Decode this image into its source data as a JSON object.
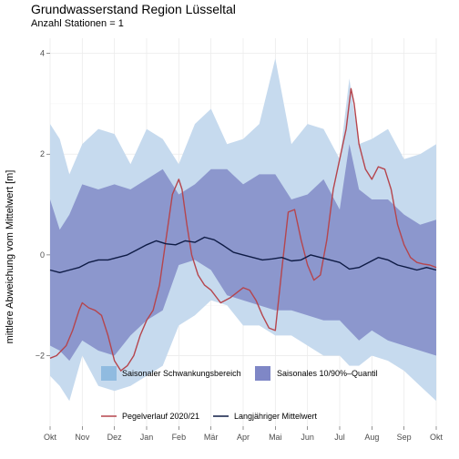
{
  "title": "Grundwasserstand Region Lüsseltal",
  "subtitle": "Anzahl Stationen = 1",
  "chart_data": {
    "type": "area",
    "title": "Grundwasserstand Region Lüsseltal",
    "subtitle": "Anzahl Stationen = 1",
    "xlabel": "",
    "ylabel": "mittlere Abweichung vom Mittelwert [m]",
    "xlim": [
      0,
      12
    ],
    "ylim": [
      -3.4,
      4.3
    ],
    "x_ticks": [
      {
        "x": 0,
        "label": "Okt"
      },
      {
        "x": 1,
        "label": "Nov"
      },
      {
        "x": 2,
        "label": "Dez"
      },
      {
        "x": 3,
        "label": "Jan"
      },
      {
        "x": 4,
        "label": "Feb"
      },
      {
        "x": 5,
        "label": "Mär"
      },
      {
        "x": 6,
        "label": "Apr"
      },
      {
        "x": 7,
        "label": "Mai"
      },
      {
        "x": 8,
        "label": "Jun"
      },
      {
        "x": 9,
        "label": "Jul"
      },
      {
        "x": 10,
        "label": "Aug"
      },
      {
        "x": 11,
        "label": "Sep"
      },
      {
        "x": 12,
        "label": "Okt"
      }
    ],
    "y_ticks": [
      -2,
      0,
      2,
      4
    ],
    "y_tick_labels": [
      "−2",
      "0",
      "2",
      "4"
    ],
    "grid": true,
    "legend_position": "bottom",
    "colors": {
      "range_band": "#c6daee",
      "quantile_band": "#8c97cd",
      "pegel": "#b5454d",
      "mittel": "#0e1b45",
      "legend_range": "#90bbe0",
      "legend_quantile": "#7f87c6"
    },
    "series": [
      {
        "name": "Saisonaler Schwankungsbereich",
        "kind": "band",
        "x": [
          0,
          0.3,
          0.6,
          1,
          1.5,
          2,
          2.5,
          3,
          3.5,
          4,
          4.5,
          5,
          5.5,
          6,
          6.5,
          7,
          7.5,
          8,
          8.5,
          9,
          9.3,
          9.6,
          10,
          10.5,
          11,
          11.5,
          12
        ],
        "upper": [
          2.6,
          2.3,
          1.6,
          2.2,
          2.5,
          2.4,
          1.8,
          2.5,
          2.3,
          1.8,
          2.6,
          2.9,
          2.2,
          2.3,
          2.6,
          3.9,
          2.2,
          2.6,
          2.5,
          1.9,
          3.5,
          2.2,
          2.3,
          2.5,
          1.9,
          2.0,
          2.2
        ],
        "lower": [
          -2.4,
          -2.6,
          -2.9,
          -2.0,
          -2.6,
          -2.7,
          -2.6,
          -2.4,
          -2.2,
          -1.4,
          -1.2,
          -0.9,
          -1.0,
          -1.4,
          -1.4,
          -1.6,
          -1.6,
          -1.8,
          -2.0,
          -2.0,
          -2.2,
          -2.2,
          -2.0,
          -2.1,
          -2.3,
          -2.6,
          -2.9
        ]
      },
      {
        "name": "Saisonales 10/90%–Quantil",
        "kind": "band",
        "x": [
          0,
          0.3,
          0.6,
          1,
          1.5,
          2,
          2.5,
          3,
          3.5,
          4,
          4.5,
          5,
          5.5,
          6,
          6.5,
          7,
          7.5,
          8,
          8.5,
          9,
          9.3,
          9.6,
          10,
          10.5,
          11,
          11.5,
          12
        ],
        "upper": [
          1.1,
          0.5,
          0.8,
          1.4,
          1.3,
          1.4,
          1.3,
          1.5,
          1.7,
          1.2,
          1.4,
          1.7,
          1.7,
          1.4,
          1.6,
          1.6,
          1.1,
          1.2,
          1.5,
          0.9,
          2.2,
          1.3,
          1.1,
          1.1,
          0.8,
          0.6,
          0.7
        ],
        "lower": [
          -1.8,
          -1.9,
          -2.1,
          -1.7,
          -1.9,
          -2.0,
          -1.6,
          -1.3,
          -1.1,
          -0.2,
          -0.1,
          -0.3,
          -0.8,
          -0.9,
          -1.0,
          -1.1,
          -1.1,
          -1.2,
          -1.3,
          -1.3,
          -1.5,
          -1.7,
          -1.5,
          -1.7,
          -1.8,
          -1.9,
          -2.0
        ]
      },
      {
        "name": "Pegelverlauf  2020/21",
        "kind": "line",
        "x": [
          0,
          0.2,
          0.5,
          0.7,
          0.9,
          1.0,
          1.2,
          1.4,
          1.6,
          1.8,
          2.0,
          2.2,
          2.4,
          2.6,
          2.8,
          3.0,
          3.2,
          3.4,
          3.6,
          3.8,
          4.0,
          4.1,
          4.25,
          4.4,
          4.6,
          4.8,
          5.0,
          5.3,
          5.6,
          5.8,
          6.0,
          6.2,
          6.4,
          6.6,
          6.8,
          7.0,
          7.2,
          7.4,
          7.6,
          7.8,
          8.0,
          8.2,
          8.4,
          8.6,
          8.8,
          9.0,
          9.2,
          9.35,
          9.45,
          9.6,
          9.8,
          10.0,
          10.2,
          10.4,
          10.6,
          10.8,
          11.0,
          11.2,
          11.4,
          11.6,
          11.8,
          12.0
        ],
        "y": [
          -2.05,
          -2.0,
          -1.8,
          -1.5,
          -1.1,
          -0.95,
          -1.05,
          -1.1,
          -1.2,
          -1.6,
          -2.1,
          -2.3,
          -2.2,
          -2.0,
          -1.6,
          -1.3,
          -1.1,
          -0.6,
          0.3,
          1.2,
          1.5,
          1.3,
          0.6,
          0.0,
          -0.4,
          -0.6,
          -0.7,
          -0.95,
          -0.85,
          -0.75,
          -0.65,
          -0.7,
          -0.9,
          -1.2,
          -1.45,
          -1.5,
          -0.3,
          0.85,
          0.9,
          0.3,
          -0.2,
          -0.5,
          -0.4,
          0.3,
          1.3,
          1.9,
          2.5,
          3.3,
          3.0,
          2.2,
          1.7,
          1.5,
          1.75,
          1.7,
          1.3,
          0.6,
          0.2,
          -0.05,
          -0.15,
          -0.18,
          -0.2,
          -0.25
        ]
      },
      {
        "name": "Langjähriger Mittelwert",
        "kind": "line",
        "x": [
          0,
          0.3,
          0.6,
          0.9,
          1.2,
          1.5,
          1.8,
          2.1,
          2.4,
          2.7,
          3.0,
          3.3,
          3.6,
          3.9,
          4.2,
          4.5,
          4.8,
          5.1,
          5.4,
          5.7,
          6.0,
          6.3,
          6.6,
          6.9,
          7.2,
          7.5,
          7.8,
          8.1,
          8.4,
          8.7,
          9.0,
          9.3,
          9.6,
          9.9,
          10.2,
          10.5,
          10.8,
          11.1,
          11.4,
          11.7,
          12.0
        ],
        "y": [
          -0.3,
          -0.35,
          -0.3,
          -0.25,
          -0.15,
          -0.1,
          -0.1,
          -0.05,
          0.0,
          0.1,
          0.2,
          0.28,
          0.22,
          0.2,
          0.28,
          0.25,
          0.35,
          0.3,
          0.18,
          0.05,
          0.0,
          -0.05,
          -0.1,
          -0.08,
          -0.05,
          -0.12,
          -0.1,
          0.0,
          -0.05,
          -0.1,
          -0.15,
          -0.28,
          -0.25,
          -0.15,
          -0.05,
          -0.1,
          -0.2,
          -0.25,
          -0.3,
          -0.25,
          -0.3
        ]
      }
    ]
  },
  "legend": {
    "items": [
      {
        "label": "Saisonaler Schwankungsbereich"
      },
      {
        "label": "Saisonales 10/90%–Quantil"
      },
      {
        "label": "Pegelverlauf  2020/21"
      },
      {
        "label": "Langjähriger Mittelwert"
      }
    ]
  }
}
